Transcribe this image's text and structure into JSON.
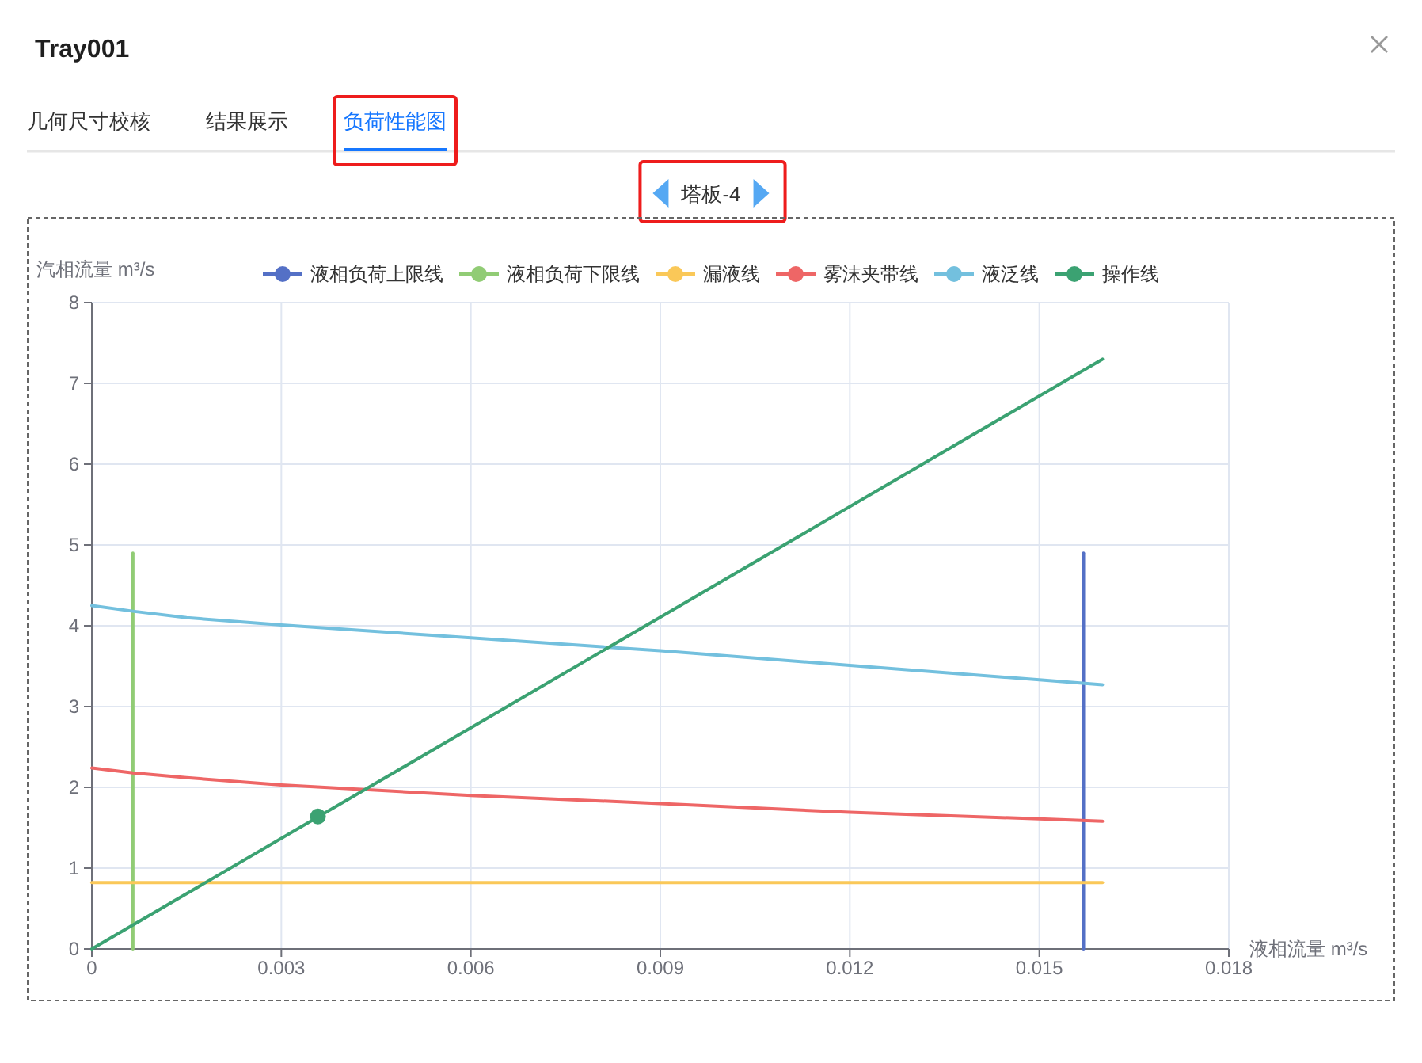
{
  "chart_data": {
    "type": "line",
    "title": "Tray001",
    "subtitle": "塔板-4",
    "annotations": [
      "几何尺寸校核",
      "结果展示",
      "负荷性能图"
    ],
    "xlabel": "液相流量 m³/s",
    "ylabel": "汽相流量 m³/s",
    "xlim": [
      0,
      0.018
    ],
    "xticks": [
      0,
      0.003,
      0.006,
      0.009,
      0.012,
      0.015,
      0.018
    ],
    "ylim": [
      0,
      8
    ],
    "yticks": [
      0,
      1,
      2,
      3,
      4,
      5,
      6,
      7,
      8
    ],
    "grid": true,
    "legend": "top",
    "series": [
      {
        "name": "液相负荷上限线",
        "color": "#5470c6",
        "x": [
          0.0157,
          0.0157
        ],
        "values": [
          0,
          4.9
        ]
      },
      {
        "name": "液相负荷下限线",
        "color": "#91cc75",
        "x": [
          0.00065,
          0.00065
        ],
        "values": [
          0,
          4.9
        ]
      },
      {
        "name": "漏液线",
        "color": "#fac858",
        "x": [
          0,
          0.016
        ],
        "values": [
          0.82,
          0.82
        ]
      },
      {
        "name": "雾沫夹带线",
        "color": "#ee6666",
        "x": [
          0,
          0.00065,
          0.0015,
          0.003,
          0.006,
          0.009,
          0.012,
          0.015,
          0.016
        ],
        "values": [
          2.24,
          2.18,
          2.12,
          2.03,
          1.9,
          1.8,
          1.69,
          1.61,
          1.58
        ]
      },
      {
        "name": "液泛线",
        "color": "#73c0de",
        "x": [
          0,
          0.00065,
          0.0015,
          0.003,
          0.006,
          0.009,
          0.012,
          0.015,
          0.016
        ],
        "values": [
          4.25,
          4.18,
          4.1,
          4.01,
          3.85,
          3.69,
          3.51,
          3.33,
          3.27
        ]
      },
      {
        "name": "操作线",
        "color": "#3ba272",
        "x": [
          0,
          0.016
        ],
        "values": [
          0,
          7.3
        ]
      },
      {
        "type": "scatter",
        "marker": "circle",
        "color": "#3ba272",
        "x": [
          0.00358
        ],
        "values": [
          1.64
        ]
      }
    ]
  }
}
